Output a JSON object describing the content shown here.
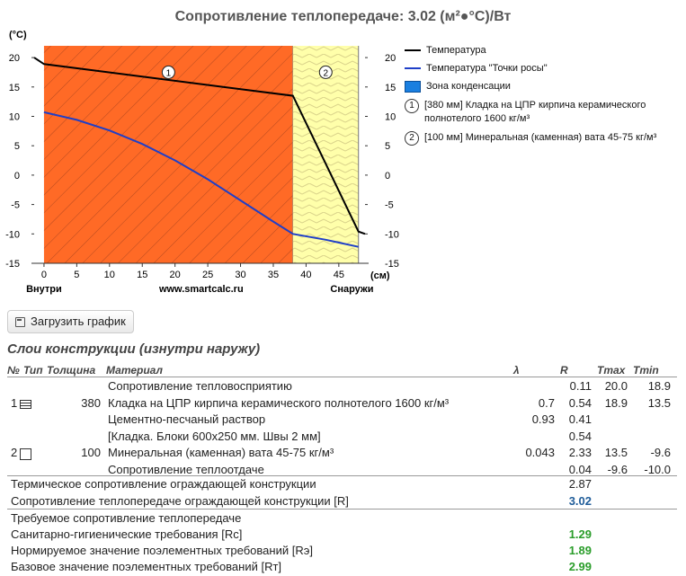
{
  "title": "Сопротивление теплопередаче: 3.02 (м²●°С)/Вт",
  "chart_data": {
    "type": "line",
    "y_unit_label": "(°C)",
    "x_unit_label": "(см)",
    "xlim": [
      -1.5,
      49
    ],
    "ylim": [
      -15,
      22
    ],
    "x_ticks": [
      0,
      5,
      10,
      15,
      20,
      25,
      30,
      35,
      40,
      45
    ],
    "y_ticks": [
      20,
      15,
      10,
      5,
      0,
      -5,
      -10,
      -15
    ],
    "x_labels": {
      "inside": "Внутри",
      "site": "www.smartcalc.ru",
      "outside": "Снаружи"
    },
    "layers": [
      {
        "marker": "1",
        "x_from": 0,
        "x_to": 38,
        "color": "#FF6A26"
      },
      {
        "marker": "2",
        "x_from": 38,
        "x_to": 48,
        "color": "#FFFFAA"
      }
    ],
    "series": [
      {
        "name": "Температура",
        "color": "#000000",
        "points": [
          [
            -1.5,
            20
          ],
          [
            0,
            18.9
          ],
          [
            38,
            13.5
          ],
          [
            48,
            -9.6
          ],
          [
            49,
            -10
          ]
        ]
      },
      {
        "name": "Температура \"Точки росы\"",
        "color": "#1f3fc8",
        "points": [
          [
            0,
            10.7
          ],
          [
            5,
            9.4
          ],
          [
            10,
            7.6
          ],
          [
            15,
            5.3
          ],
          [
            20,
            2.5
          ],
          [
            25,
            -0.7
          ],
          [
            30,
            -4.3
          ],
          [
            35,
            -7.9
          ],
          [
            38,
            -10.0
          ],
          [
            43,
            -11.0
          ],
          [
            48,
            -12.2
          ]
        ]
      }
    ],
    "legend": [
      {
        "label": "Температура",
        "kind": "line",
        "color": "#000000"
      },
      {
        "label": "Температура \"Точки росы\"",
        "kind": "line",
        "color": "#1f3fc8"
      },
      {
        "label": "Зона конденсации",
        "kind": "box",
        "color": "#1a7fe0"
      },
      {
        "label": "[380 мм] Кладка на ЦПР кирпича керамического полнотелого 1600 кг/м³",
        "kind": "marker",
        "marker": "1"
      },
      {
        "label": "[100 мм] Минеральная (каменная) вата 45-75 кг/м³",
        "kind": "marker",
        "marker": "2"
      }
    ]
  },
  "button": {
    "label": "Загрузить график",
    "icon": "save-icon"
  },
  "section_title": "Слои конструкции (изнутри наружу)",
  "table": {
    "headers": {
      "no": "№",
      "type": "Тип",
      "thickness": "Толщина",
      "material": "Материал",
      "lambda": "λ",
      "r": "R",
      "tmax": "Tmax",
      "tmin": "Tmin"
    },
    "rows": [
      {
        "no": "",
        "thickness": "",
        "material": "Сопротивление тепловосприятию",
        "lambda": "",
        "r": "0.11",
        "tmax": "20.0",
        "tmin": "18.9",
        "icon": ""
      },
      {
        "no": "1",
        "thickness": "380",
        "material": "Кладка на ЦПР кирпича керамического полнотелого 1600 кг/м³",
        "lambda": "0.7",
        "r": "0.54",
        "tmax": "18.9",
        "tmin": "13.5",
        "icon": "brick-icon"
      },
      {
        "no": "",
        "thickness": "",
        "material": "Цементно-песчаный раствор",
        "lambda": "0.93",
        "r": "0.41",
        "tmax": "",
        "tmin": "",
        "icon": ""
      },
      {
        "no": "",
        "thickness": "",
        "material": "[Кладка. Блоки 600x250 мм. Швы 2 мм]",
        "lambda": "",
        "r": "0.54",
        "tmax": "",
        "tmin": "",
        "icon": ""
      },
      {
        "no": "2",
        "thickness": "100",
        "material": "Минеральная (каменная) вата 45-75 кг/м³",
        "lambda": "0.043",
        "r": "2.33",
        "tmax": "13.5",
        "tmin": "-9.6",
        "icon": "square-icon"
      },
      {
        "no": "",
        "thickness": "",
        "material": "Сопротивление теплоотдаче",
        "lambda": "",
        "r": "0.04",
        "tmax": "-9.6",
        "tmin": "-10.0",
        "icon": ""
      }
    ],
    "totals": [
      {
        "label": "Термическое сопротивление ограждающей конструкции",
        "value": "2.87"
      },
      {
        "label": "Сопротивление теплопередаче ограждающей конструкции [R]",
        "value": "3.02"
      }
    ],
    "requirements_title": "Требуемое сопротивление теплопередаче",
    "requirements": [
      {
        "label": "Санитарно-гигиенические требования [Rс]",
        "value": "1.29"
      },
      {
        "label": "Нормируемое значение поэлементных требований [Rэ]",
        "value": "1.89"
      },
      {
        "label": "Базовое значение поэлементных требований [Rт]",
        "value": "2.99"
      }
    ]
  }
}
